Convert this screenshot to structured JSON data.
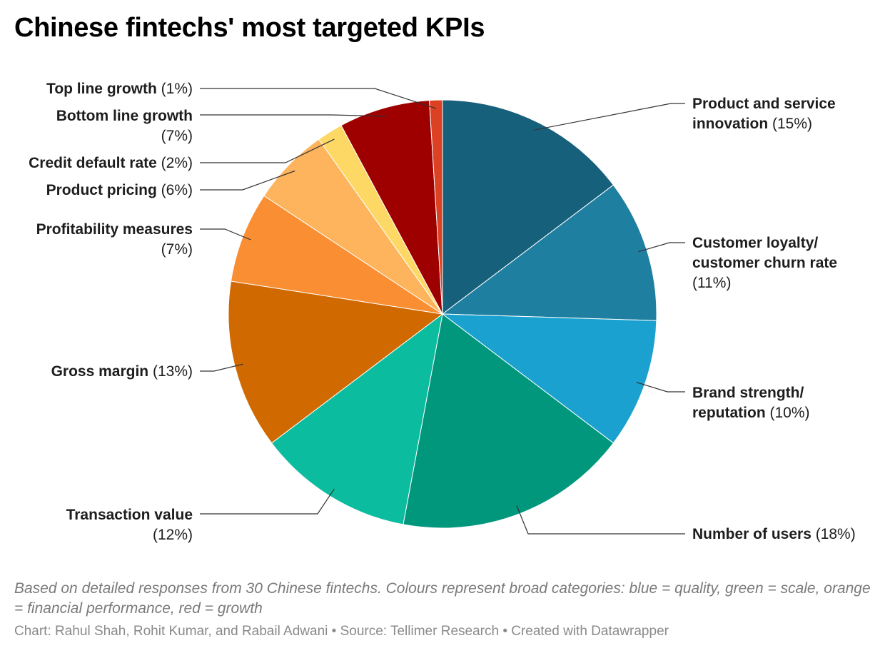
{
  "title": "Chinese fintechs' most targeted KPIs",
  "notes": "Based on detailed responses from 30 Chinese fintechs. Colours represent broad categories: blue = quality, green = scale, orange = financial performance, red = growth",
  "credit": "Chart: Rahul Shah, Rohit Kumar, and Rabail Adwani • Source: Tellimer Research • Created with Datawrapper",
  "chart_data": {
    "type": "pie",
    "title": "Chinese fintechs' most targeted KPIs",
    "slices": [
      {
        "label": "Product and service innovation",
        "value": 15,
        "color": "#17607c",
        "category": "quality"
      },
      {
        "label": "Customer loyalty/ customer churn rate",
        "value": 11,
        "color": "#1f7fa0",
        "category": "quality"
      },
      {
        "label": "Brand strength/ reputation",
        "value": 10,
        "color": "#1aa1cf",
        "category": "quality"
      },
      {
        "label": "Number of users",
        "value": 18,
        "color": "#00977c",
        "category": "scale"
      },
      {
        "label": "Transaction value",
        "value": 12,
        "color": "#0bbc9f",
        "category": "scale"
      },
      {
        "label": "Gross margin",
        "value": 13,
        "color": "#d06a00",
        "category": "financial performance"
      },
      {
        "label": "Profitability measures",
        "value": 7,
        "color": "#f98e32",
        "category": "financial performance"
      },
      {
        "label": "Product pricing",
        "value": 6,
        "color": "#fdb45c",
        "category": "financial performance"
      },
      {
        "label": "Credit default rate",
        "value": 2,
        "color": "#fed865",
        "category": "financial performance"
      },
      {
        "label": "Bottom line growth",
        "value": 7,
        "color": "#9e0000",
        "category": "growth"
      },
      {
        "label": "Top line growth",
        "value": 1,
        "color": "#dd4123",
        "category": "growth"
      }
    ],
    "labels": [
      {
        "lines": [
          [
            {
              "t": "Product and service",
              "b": true
            }
          ],
          [
            {
              "t": "innovation",
              "b": true
            },
            {
              "t": " (15%)",
              "b": false
            }
          ]
        ]
      },
      {
        "lines": [
          [
            {
              "t": "Customer loyalty/",
              "b": true
            }
          ],
          [
            {
              "t": "customer churn rate",
              "b": true
            }
          ],
          [
            {
              "t": "(11%)",
              "b": false
            }
          ]
        ]
      },
      {
        "lines": [
          [
            {
              "t": "Brand strength/",
              "b": true
            }
          ],
          [
            {
              "t": "reputation",
              "b": true
            },
            {
              "t": " (10%)",
              "b": false
            }
          ]
        ]
      },
      {
        "lines": [
          [
            {
              "t": "Number of users",
              "b": true
            },
            {
              "t": " (18%)",
              "b": false
            }
          ]
        ]
      },
      {
        "lines": [
          [
            {
              "t": "Transaction value",
              "b": true
            }
          ],
          [
            {
              "t": "(12%)",
              "b": false
            }
          ]
        ]
      },
      {
        "lines": [
          [
            {
              "t": "Gross margin",
              "b": true
            },
            {
              "t": " (13%)",
              "b": false
            }
          ]
        ]
      },
      {
        "lines": [
          [
            {
              "t": "Profitability measures",
              "b": true
            }
          ],
          [
            {
              "t": "(7%)",
              "b": false
            }
          ]
        ]
      },
      {
        "lines": [
          [
            {
              "t": "Product pricing",
              "b": true
            },
            {
              "t": " (6%)",
              "b": false
            }
          ]
        ]
      },
      {
        "lines": [
          [
            {
              "t": "Credit default rate",
              "b": true
            },
            {
              "t": " (2%)",
              "b": false
            }
          ]
        ]
      },
      {
        "lines": [
          [
            {
              "t": "Bottom line growth",
              "b": true
            }
          ],
          [
            {
              "t": "(7%)",
              "b": false
            }
          ]
        ]
      },
      {
        "lines": [
          [
            {
              "t": "Top line growth",
              "b": true
            },
            {
              "t": " (1%)",
              "b": false
            }
          ]
        ]
      }
    ]
  }
}
